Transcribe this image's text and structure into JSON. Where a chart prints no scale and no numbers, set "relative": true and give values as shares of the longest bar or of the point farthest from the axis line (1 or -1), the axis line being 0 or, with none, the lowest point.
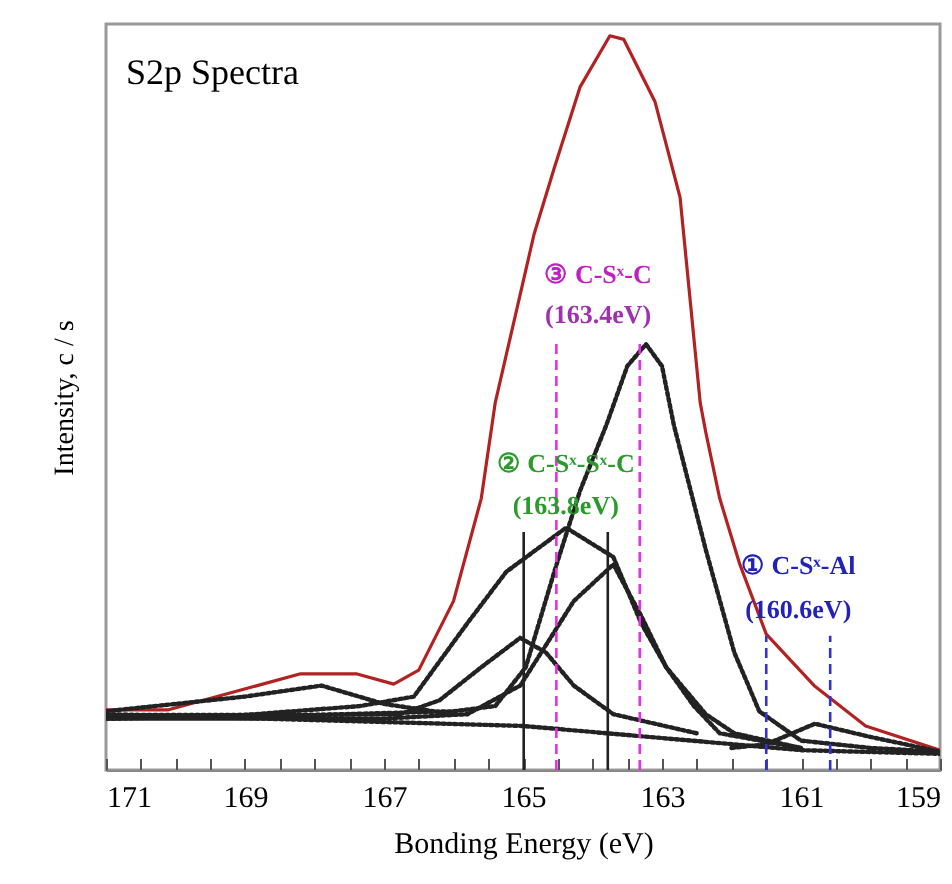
{
  "chart_data": {
    "type": "line",
    "title": "S2p Spectra",
    "xlabel": "Bonding Energy (eV)",
    "ylabel": "Intensity, c / s",
    "relative": true,
    "grid": false,
    "xlim": [
      171,
      159
    ],
    "xticks": [
      171,
      {
        "value": 170.5,
        "label": null
      },
      {
        "value": 170,
        "label": null
      },
      {
        "value": 169.5,
        "label": null
      },
      169,
      {
        "value": 168.5,
        "label": null
      },
      {
        "value": 168,
        "label": null
      },
      {
        "value": 167.5,
        "label": null
      },
      167,
      {
        "value": 166.5,
        "label": null
      },
      {
        "value": 166,
        "label": null
      },
      {
        "value": 165.5,
        "label": null
      },
      165,
      {
        "value": 164.5,
        "label": null
      },
      {
        "value": 164,
        "label": null
      },
      {
        "value": 163.5,
        "label": null
      },
      163,
      {
        "value": 162.5,
        "label": null
      },
      {
        "value": 162,
        "label": null
      },
      {
        "value": 161.5,
        "label": null
      },
      161,
      {
        "value": 160.5,
        "label": null
      },
      {
        "value": 160,
        "label": null
      },
      {
        "value": 159.5,
        "label": null
      },
      159
    ],
    "series": [
      {
        "color": "#b22222",
        "line_style": "solid",
        "x": [
          171,
          170.1,
          168.2,
          167.4,
          166.86,
          166.5,
          166.0,
          165.6,
          165.4,
          164.84,
          164.55,
          164.18,
          163.75,
          163.55,
          163.1,
          162.74,
          162.45,
          162.37,
          162.17,
          161.88,
          161.5,
          160.8,
          160.07,
          159
        ],
        "values": [
          0.082,
          0.082,
          0.131,
          0.131,
          0.117,
          0.136,
          0.23,
          0.37,
          0.5,
          0.73,
          0.82,
          0.93,
          1.0,
          0.995,
          0.91,
          0.78,
          0.5,
          0.46,
          0.37,
          0.28,
          0.185,
          0.114,
          0.06,
          0.027
        ]
      },
      {
        "color": "#222222",
        "line_style": "dotted",
        "x": [
          171,
          168,
          166,
          165.4,
          164.96,
          164.55,
          164.18,
          163.8,
          163.5,
          163.23,
          163,
          162.83,
          162.37,
          161.96,
          161.6,
          161,
          160,
          159
        ],
        "values": [
          0.07,
          0.075,
          0.08,
          0.087,
          0.14,
          0.27,
          0.38,
          0.47,
          0.55,
          0.58,
          0.55,
          0.47,
          0.3,
          0.16,
          0.08,
          0.04,
          0.03,
          0.025
        ]
      },
      {
        "color": "#222222",
        "line_style": "dotted",
        "x": [
          171,
          169,
          167.35,
          166.57,
          165.8,
          165.24,
          164.38,
          163.7,
          163.3,
          162.94,
          162.37,
          161.96,
          161
        ],
        "values": [
          0.07,
          0.075,
          0.087,
          0.1,
          0.2,
          0.27,
          0.33,
          0.29,
          0.2,
          0.14,
          0.076,
          0.05,
          0.03
        ]
      },
      {
        "color": "#222222",
        "line_style": "dotted",
        "x": [
          171,
          167,
          165.8,
          165.04,
          164.67,
          164.27,
          163.7,
          163.3,
          162.94,
          162.54,
          162.17,
          161
        ],
        "values": [
          0.07,
          0.07,
          0.076,
          0.115,
          0.17,
          0.23,
          0.28,
          0.21,
          0.14,
          0.087,
          0.05,
          0.03
        ]
      },
      {
        "color": "#222222",
        "line_style": "dotted",
        "x": [
          171,
          168,
          166.77,
          166.2,
          165.6,
          165.04,
          164.67,
          164.27,
          163.7,
          162.5
        ],
        "values": [
          0.075,
          0.075,
          0.076,
          0.095,
          0.14,
          0.18,
          0.16,
          0.115,
          0.076,
          0.05
        ]
      },
      {
        "color": "#222222",
        "line_style": "dotted",
        "x": [
          171,
          169,
          167.9,
          167,
          166
        ],
        "values": [
          0.08,
          0.1,
          0.115,
          0.09,
          0.076
        ]
      },
      {
        "color": "#222222",
        "line_style": "dotted",
        "x": [
          162,
          161.5,
          160.8,
          160,
          159
        ],
        "values": [
          0.03,
          0.035,
          0.063,
          0.045,
          0.025
        ]
      },
      {
        "color": "#222222",
        "line_style": "dotted",
        "x": [
          171,
          165,
          161,
          159
        ],
        "values": [
          0.076,
          0.06,
          0.027,
          0.022
        ]
      }
    ],
    "ref_lines": [
      {
        "axis": "x",
        "value": 164.52,
        "color": "#e62ee6",
        "line_style": "dashed"
      },
      {
        "axis": "x",
        "value": 163.32,
        "color": "#e62ee6",
        "line_style": "dashed"
      },
      {
        "axis": "x",
        "value": 164.99,
        "color": "#222222",
        "line_style": "solid"
      },
      {
        "axis": "x",
        "value": 163.78,
        "color": "#222222",
        "line_style": "solid"
      },
      {
        "axis": "x",
        "value": 161.5,
        "color": "#3333cc",
        "line_style": "dashed"
      },
      {
        "axis": "x",
        "value": 160.58,
        "color": "#3333cc",
        "line_style": "dashed"
      }
    ],
    "annotations": [
      "③ C-Sˣ-C",
      "(163.4eV)",
      "② C-Sˣ-Sˣ-C",
      "(163.8eV)",
      "① C-Sˣ-Al",
      "(160.6eV)"
    ]
  }
}
